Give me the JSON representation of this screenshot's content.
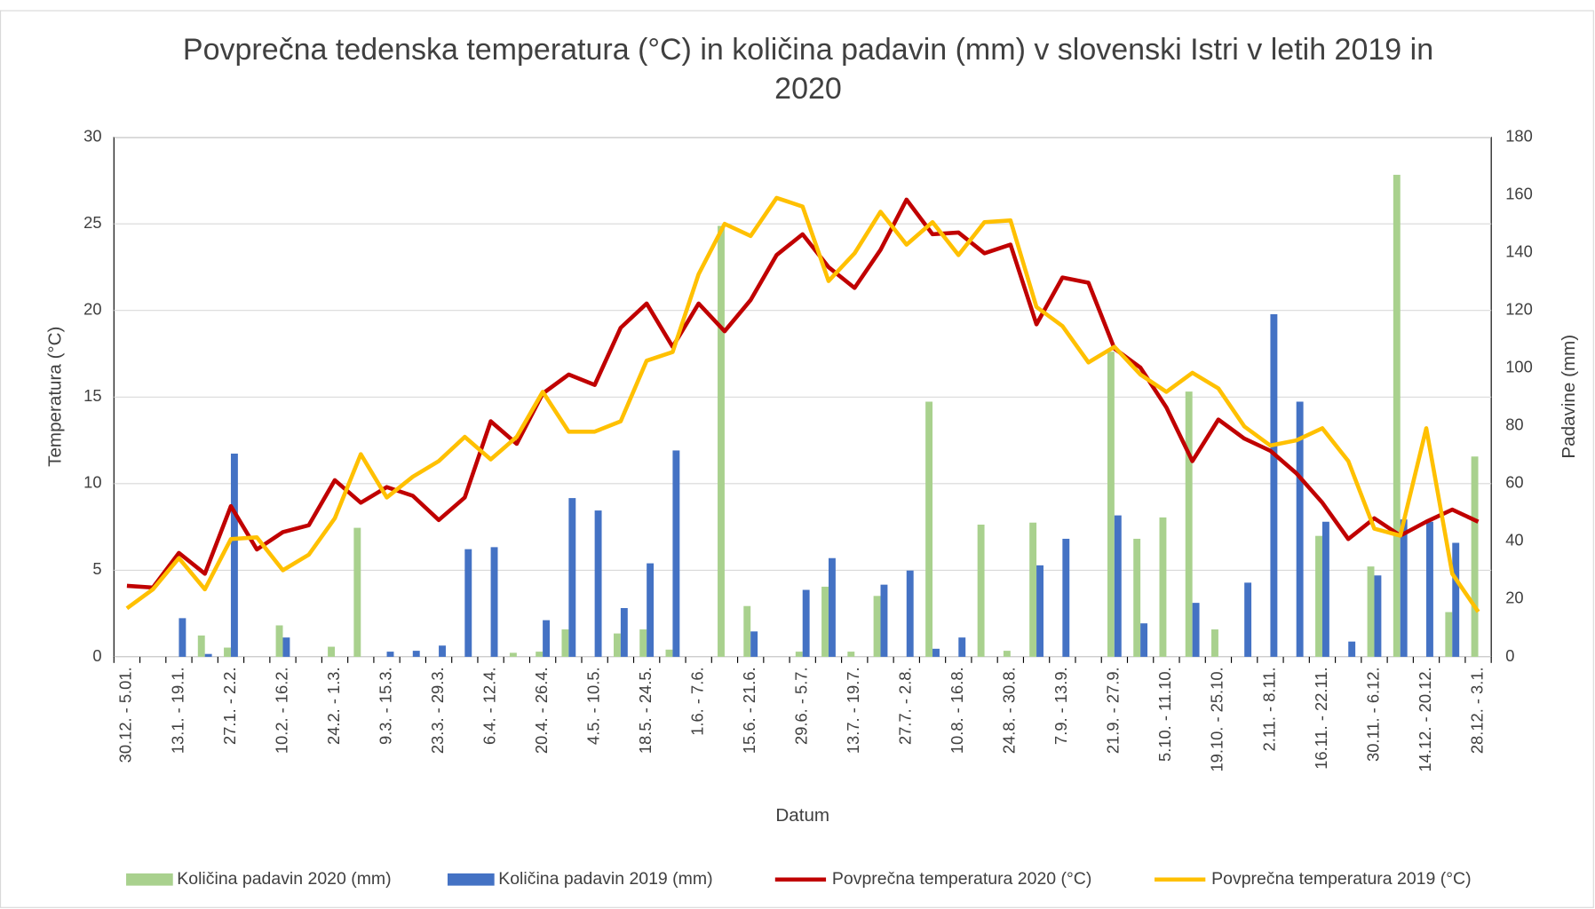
{
  "chart_data": {
    "type": "bar",
    "title": "Povprečna tedenska temperatura (°C) in količina padavin (mm) v slovenski Istri v letih 2019 in 2020",
    "xlabel": "Datum",
    "ylabel": "Temperatura (°C)",
    "y2label": "Padavine (mm)",
    "categories": [
      "30.12. - 5.01.",
      null,
      "13.1. - 19.1.",
      null,
      "27.1. - 2.2.",
      null,
      "10.2. - 16.2.",
      null,
      "24.2. - 1.3.",
      null,
      "9.3. - 15.3.",
      null,
      "23.3. - 29.3.",
      null,
      "6.4. - 12.4.",
      null,
      "20.4. - 26.4.",
      null,
      "4.5. - 10.5.",
      null,
      "18.5. - 24.5.",
      null,
      "1.6. - 7.6.",
      null,
      "15.6. - 21.6.",
      null,
      "29.6. - 5.7.",
      null,
      "13.7. - 19.7.",
      null,
      "27.7. - 2.8.",
      null,
      "10.8. - 16.8.",
      null,
      "24.8. - 30.8.",
      null,
      "7.9. - 13.9.",
      null,
      "21.9. - 27.9.",
      null,
      "5.10. - 11.10.",
      null,
      "19.10. - 25.10.",
      null,
      "2.11. - 8.11.",
      null,
      "16.11. - 22.11.",
      null,
      "30.11. - 6.12.",
      null,
      "14.12. - 20.12.",
      null,
      "28.12. - 3.1."
    ],
    "ylim": [
      0,
      30
    ],
    "yticks": [
      0,
      5,
      10,
      15,
      20,
      25,
      30
    ],
    "y2lim": [
      0,
      180
    ],
    "y2ticks": [
      0,
      20,
      40,
      60,
      80,
      100,
      120,
      140,
      160,
      180
    ],
    "grid": true,
    "legend": "bottom",
    "series": [
      {
        "name": "Količina padavin 2020 (mm)",
        "type": "bar",
        "axis": "y2",
        "color": "#a9d18e",
        "values": [
          0,
          0,
          0,
          7.4,
          3.2,
          0,
          10.9,
          0,
          3.5,
          44.7,
          0,
          0,
          0,
          0,
          0,
          1.4,
          1.8,
          9.5,
          0,
          8.1,
          9.5,
          2.5,
          0,
          149.3,
          17.6,
          0,
          1.8,
          24.3,
          1.8,
          21.1,
          0,
          88.4,
          0,
          45.8,
          2.1,
          46.5,
          0,
          0,
          105.7,
          40.9,
          48.3,
          91.9,
          9.5,
          0,
          0,
          0,
          41.9,
          0,
          31.3,
          167,
          0,
          15.5,
          69.4
        ]
      },
      {
        "name": "Količina padavin 2019 (mm)",
        "type": "bar",
        "axis": "y2",
        "color": "#4472c4",
        "values": [
          0,
          0,
          13.4,
          1,
          70.4,
          0,
          6.7,
          0,
          0,
          0,
          1.8,
          2.1,
          3.9,
          37.3,
          38,
          0,
          12.7,
          55,
          50.7,
          16.9,
          32.4,
          71.5,
          0,
          0,
          8.8,
          0,
          23.2,
          34.2,
          0,
          25,
          29.9,
          2.8,
          6.7,
          0,
          0,
          31.7,
          40.9,
          0,
          49,
          11.6,
          0,
          18.7,
          0,
          25.7,
          118.7,
          88.4,
          46.8,
          5.3,
          28.2,
          47.6,
          46.8,
          39.5,
          0
        ]
      },
      {
        "name": "Povprečna temperatura 2020 (°C)",
        "type": "line",
        "color": "#c00000",
        "values": [
          4.1,
          4.0,
          6.0,
          4.8,
          8.7,
          6.2,
          7.2,
          7.6,
          10.2,
          8.9,
          9.8,
          9.3,
          7.9,
          9.2,
          13.6,
          12.3,
          15.2,
          16.3,
          15.7,
          19.0,
          20.4,
          17.9,
          20.4,
          18.8,
          20.6,
          23.2,
          24.4,
          22.5,
          21.3,
          23.5,
          26.4,
          24.4,
          24.5,
          23.3,
          23.8,
          19.2,
          21.9,
          21.6,
          17.8,
          16.7,
          14.4,
          11.3,
          13.7,
          12.6,
          11.9,
          10.6,
          8.9,
          6.8,
          8.0,
          7.0,
          7.8,
          8.5,
          7.8
        ]
      },
      {
        "name": "Povprečna temperatura 2019 (°C)",
        "type": "line",
        "color": "#ffc000",
        "values": [
          2.8,
          3.9,
          5.7,
          3.9,
          6.8,
          6.9,
          5.0,
          5.9,
          8.0,
          11.7,
          9.2,
          10.4,
          11.3,
          12.7,
          11.4,
          12.7,
          15.3,
          13.0,
          13.0,
          13.6,
          17.1,
          17.6,
          22.1,
          25.0,
          24.3,
          26.5,
          26.0,
          21.7,
          23.3,
          25.7,
          23.8,
          25.1,
          23.2,
          25.1,
          25.2,
          20.2,
          19.1,
          17.0,
          17.9,
          16.3,
          15.3,
          16.4,
          15.5,
          13.3,
          12.2,
          12.5,
          13.2,
          11.3,
          7.4,
          7.0,
          13.2,
          4.8,
          2.6
        ]
      }
    ]
  }
}
